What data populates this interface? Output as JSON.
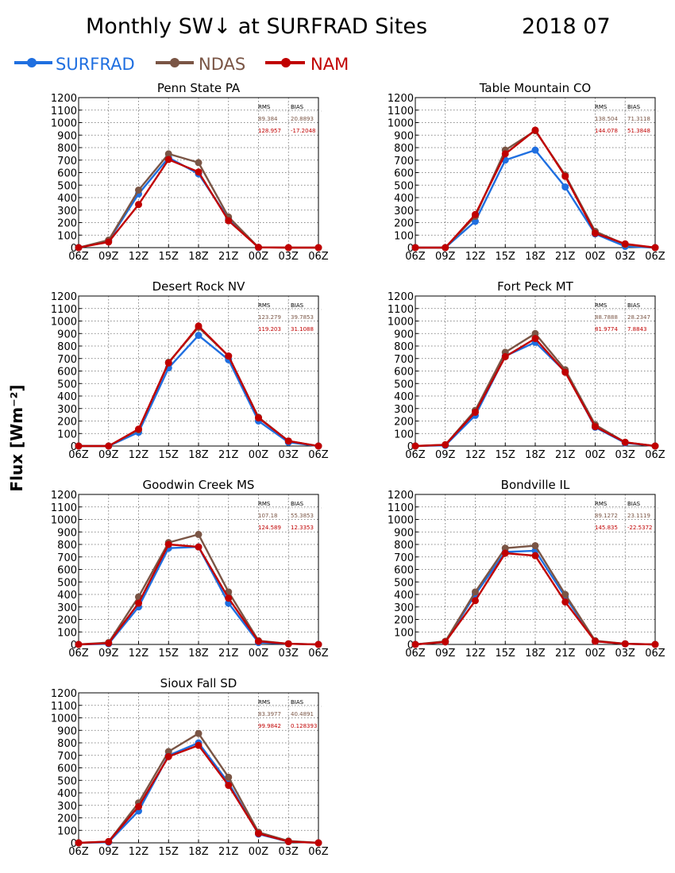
{
  "figure": {
    "title": "Monthly SW↓ at SURFRAD Sites",
    "date": "2018 07",
    "ylabel": "Flux [Wm⁻²]"
  },
  "legend": [
    {
      "name": "SURFRAD",
      "color": "#1f6fe0"
    },
    {
      "name": "NDAS",
      "color": "#7a5545"
    },
    {
      "name": "NAM",
      "color": "#c00000"
    }
  ],
  "stats_headers": {
    "rms": "RMS",
    "bias": "BIAS"
  },
  "chart_data": [
    {
      "type": "line",
      "title": "Penn State PA",
      "categories": [
        "06Z",
        "09Z",
        "12Z",
        "15Z",
        "18Z",
        "21Z",
        "00Z",
        "03Z",
        "06Z"
      ],
      "yticks": [
        0,
        100,
        200,
        300,
        400,
        500,
        600,
        700,
        800,
        900,
        1000,
        1100,
        1200
      ],
      "ylim": [
        0,
        1200
      ],
      "grid": true,
      "stats": {
        "ndas_rms": "89.384",
        "ndas_bias": "20.8893",
        "nam_rms": "128.957",
        "nam_bias": "-17.2048"
      },
      "series": [
        {
          "name": "SURFRAD",
          "values": [
            0,
            55,
            430,
            720,
            590,
            230,
            0,
            null,
            null
          ]
        },
        {
          "name": "NDAS",
          "values": [
            0,
            60,
            460,
            750,
            680,
            245,
            2,
            0,
            0
          ]
        },
        {
          "name": "NAM",
          "values": [
            0,
            45,
            345,
            705,
            605,
            215,
            2,
            0,
            0
          ]
        }
      ]
    },
    {
      "type": "line",
      "title": "Table Mountain CO",
      "categories": [
        "06Z",
        "09Z",
        "12Z",
        "15Z",
        "18Z",
        "21Z",
        "00Z",
        "03Z",
        "06Z"
      ],
      "yticks": [
        0,
        100,
        200,
        300,
        400,
        500,
        600,
        700,
        800,
        900,
        1000,
        1100,
        1200
      ],
      "ylim": [
        0,
        1200
      ],
      "grid": true,
      "stats": {
        "ndas_rms": "138.504",
        "ndas_bias": "71.3118",
        "nam_rms": "144.078",
        "nam_bias": "51.3848"
      },
      "series": [
        {
          "name": "SURFRAD",
          "values": [
            0,
            0,
            210,
            700,
            780,
            485,
            110,
            10,
            0
          ]
        },
        {
          "name": "NDAS",
          "values": [
            0,
            0,
            250,
            780,
            935,
            580,
            130,
            25,
            0
          ]
        },
        {
          "name": "NAM",
          "values": [
            0,
            0,
            265,
            750,
            940,
            570,
            115,
            30,
            0
          ]
        }
      ]
    },
    {
      "type": "line",
      "title": "Desert Rock NV",
      "categories": [
        "06Z",
        "09Z",
        "12Z",
        "15Z",
        "18Z",
        "21Z",
        "00Z",
        "03Z",
        "06Z"
      ],
      "yticks": [
        0,
        100,
        200,
        300,
        400,
        500,
        600,
        700,
        800,
        900,
        1000,
        1100,
        1200
      ],
      "ylim": [
        0,
        1200
      ],
      "grid": true,
      "stats": {
        "ndas_rms": "123.279",
        "ndas_bias": "39.7853",
        "nam_rms": "119.203",
        "nam_bias": "31.1088"
      },
      "series": [
        {
          "name": "SURFRAD",
          "values": [
            0,
            0,
            110,
            625,
            885,
            690,
            200,
            30,
            0
          ]
        },
        {
          "name": "NDAS",
          "values": [
            0,
            0,
            130,
            670,
            950,
            720,
            230,
            40,
            0
          ]
        },
        {
          "name": "NAM",
          "values": [
            0,
            0,
            135,
            665,
            960,
            720,
            225,
            40,
            0
          ]
        }
      ]
    },
    {
      "type": "line",
      "title": "Fort Peck MT",
      "categories": [
        "06Z",
        "09Z",
        "12Z",
        "15Z",
        "18Z",
        "21Z",
        "00Z",
        "03Z",
        "06Z"
      ],
      "yticks": [
        0,
        100,
        200,
        300,
        400,
        500,
        600,
        700,
        800,
        900,
        1000,
        1100,
        1200
      ],
      "ylim": [
        0,
        1200
      ],
      "grid": true,
      "stats": {
        "ndas_rms": "88.7888",
        "ndas_bias": "28.2347",
        "nam_rms": "81.9774",
        "nam_bias": "7.8843"
      },
      "series": [
        {
          "name": "SURFRAD",
          "values": [
            0,
            5,
            245,
            720,
            830,
            595,
            150,
            25,
            0
          ]
        },
        {
          "name": "NDAS",
          "values": [
            0,
            10,
            285,
            750,
            900,
            610,
            170,
            30,
            0
          ]
        },
        {
          "name": "NAM",
          "values": [
            0,
            10,
            270,
            715,
            860,
            590,
            155,
            30,
            0
          ]
        }
      ]
    },
    {
      "type": "line",
      "title": "Goodwin Creek MS",
      "categories": [
        "06Z",
        "09Z",
        "12Z",
        "15Z",
        "18Z",
        "21Z",
        "00Z",
        "03Z",
        "06Z"
      ],
      "yticks": [
        0,
        100,
        200,
        300,
        400,
        500,
        600,
        700,
        800,
        900,
        1000,
        1100,
        1200
      ],
      "ylim": [
        0,
        1200
      ],
      "grid": true,
      "stats": {
        "ndas_rms": "107.18",
        "ndas_bias": "55.3853",
        "nam_rms": "124.589",
        "nam_bias": "12.3353"
      },
      "series": [
        {
          "name": "SURFRAD",
          "values": [
            0,
            5,
            300,
            770,
            780,
            330,
            15,
            5,
            0
          ]
        },
        {
          "name": "NDAS",
          "values": [
            0,
            15,
            380,
            815,
            880,
            420,
            30,
            5,
            0
          ]
        },
        {
          "name": "NAM",
          "values": [
            0,
            10,
            330,
            800,
            780,
            370,
            25,
            5,
            0
          ]
        }
      ]
    },
    {
      "type": "line",
      "title": "Bondville IL",
      "categories": [
        "06Z",
        "09Z",
        "12Z",
        "15Z",
        "18Z",
        "21Z",
        "00Z",
        "03Z",
        "06Z"
      ],
      "yticks": [
        0,
        100,
        200,
        300,
        400,
        500,
        600,
        700,
        800,
        900,
        1000,
        1100,
        1200
      ],
      "ylim": [
        0,
        1200
      ],
      "grid": true,
      "stats": {
        "ndas_rms": "89.1272",
        "ndas_bias": "23.1119",
        "nam_rms": "145.835",
        "nam_bias": "-22.5372"
      },
      "series": [
        {
          "name": "SURFRAD",
          "values": [
            0,
            20,
            400,
            740,
            750,
            380,
            25,
            5,
            0
          ]
        },
        {
          "name": "NDAS",
          "values": [
            0,
            25,
            420,
            770,
            790,
            400,
            30,
            5,
            0
          ]
        },
        {
          "name": "NAM",
          "values": [
            0,
            20,
            350,
            730,
            710,
            340,
            25,
            5,
            0
          ]
        }
      ]
    },
    {
      "type": "line",
      "title": "Sioux Fall SD",
      "categories": [
        "06Z",
        "09Z",
        "12Z",
        "15Z",
        "18Z",
        "21Z",
        "00Z",
        "03Z",
        "06Z"
      ],
      "yticks": [
        0,
        100,
        200,
        300,
        400,
        500,
        600,
        700,
        800,
        900,
        1000,
        1100,
        1200
      ],
      "ylim": [
        0,
        1200
      ],
      "grid": true,
      "stats": {
        "ndas_rms": "83.3977",
        "ndas_bias": "40.4891",
        "nam_rms": "99.9842",
        "nam_bias": "0.128393"
      },
      "series": [
        {
          "name": "SURFRAD",
          "values": [
            0,
            5,
            255,
            700,
            800,
            480,
            70,
            10,
            0
          ]
        },
        {
          "name": "NDAS",
          "values": [
            0,
            10,
            320,
            730,
            875,
            525,
            85,
            15,
            0
          ]
        },
        {
          "name": "NAM",
          "values": [
            0,
            10,
            290,
            690,
            780,
            460,
            75,
            10,
            0
          ]
        }
      ]
    }
  ]
}
